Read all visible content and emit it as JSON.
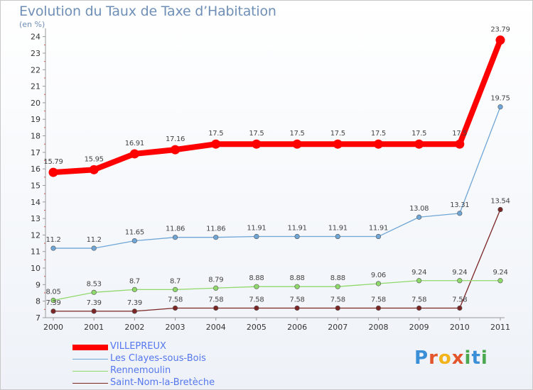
{
  "header": {
    "title": "Evolution du Taux de Taxe d’Habitation",
    "subtitle": "(en %)"
  },
  "logo": {
    "text": "Proxiti",
    "letters": [
      "P",
      "r",
      "o",
      "x",
      "i",
      "t",
      "i"
    ],
    "letter_colors": [
      "#3a8fd6",
      "#e3552b",
      "#f2b31b",
      "#e3552b",
      "#4aa84f",
      "#3a8fd6",
      "#4aa84f"
    ]
  },
  "chart_data": {
    "type": "line",
    "title": "Evolution du Taux de Taxe d’Habitation",
    "ylabel": "(en %)",
    "xlabel": "",
    "x": [
      "2000",
      "2001",
      "2002",
      "2003",
      "2004",
      "2005",
      "2006",
      "2007",
      "2008",
      "2009",
      "2010",
      "2011"
    ],
    "ylim": [
      7,
      24.5
    ],
    "yticks": [
      "7",
      "8",
      "9",
      "10",
      "11",
      "12",
      "13",
      "14",
      "15",
      "16",
      "17",
      "18",
      "19",
      "20",
      "21",
      "22",
      "23",
      "24"
    ],
    "legend_position": "bottom-left",
    "grid": false,
    "series": [
      {
        "name": "VILLEPREUX",
        "color": "#ff0000",
        "values": [
          15.79,
          15.95,
          16.91,
          17.16,
          17.5,
          17.5,
          17.5,
          17.5,
          17.5,
          17.5,
          17.5,
          23.79
        ],
        "labels": [
          "15.79",
          "15.95",
          "16.91",
          "17.16",
          "17.5",
          "17.5",
          "17.5",
          "17.5",
          "17.5",
          "17.5",
          "17.5",
          "23.79"
        ]
      },
      {
        "name": "Les Clayes-sous-Bois",
        "color": "#6fa6d6",
        "values": [
          11.2,
          11.2,
          11.65,
          11.86,
          11.86,
          11.91,
          11.91,
          11.91,
          11.91,
          13.08,
          13.31,
          19.75
        ],
        "labels": [
          "11.2",
          "11.2",
          "11.65",
          "11.86",
          "11.86",
          "11.91",
          "11.91",
          "11.91",
          "11.91",
          "13.08",
          "13.31",
          "19.75"
        ]
      },
      {
        "name": "Rennemoulin",
        "color": "#8fd86a",
        "values": [
          8.05,
          8.53,
          8.7,
          8.7,
          8.79,
          8.88,
          8.88,
          8.88,
          9.06,
          9.24,
          9.24,
          9.24
        ],
        "labels": [
          "8.05",
          "8.53",
          "8.7",
          "8.7",
          "8.79",
          "8.88",
          "8.88",
          "8.88",
          "9.06",
          "9.24",
          "9.24",
          "9.24"
        ]
      },
      {
        "name": "Saint-Nom-la-Bretèche",
        "color": "#7b2525",
        "values": [
          7.39,
          7.39,
          7.39,
          7.58,
          7.58,
          7.58,
          7.58,
          7.58,
          7.58,
          7.58,
          7.58,
          13.54
        ],
        "labels": [
          "7.39",
          "7.39",
          "7.39",
          "7.58",
          "7.58",
          "7.58",
          "7.58",
          "7.58",
          "7.58",
          "7.58",
          "7.58",
          "13.54"
        ]
      }
    ]
  }
}
